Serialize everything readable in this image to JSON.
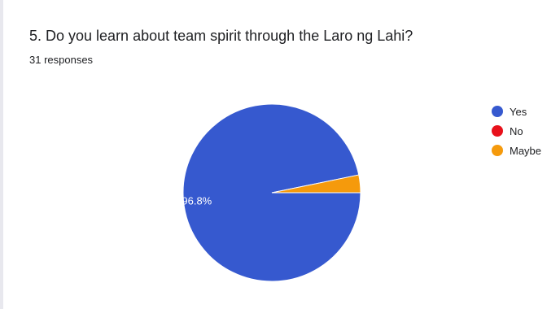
{
  "header": {
    "title": "5. Do you learn about team spirit through the Laro ng Lahi?",
    "responses": "31 responses"
  },
  "chart_data": {
    "type": "pie",
    "title": "5. Do you learn about team spirit through the Laro ng Lahi?",
    "slices": [
      {
        "label": "Yes",
        "value": 30,
        "percent_label": "96.8%",
        "color": "#3659cf"
      },
      {
        "label": "No",
        "value": 0,
        "percent_label": "",
        "color": "#e8111b"
      },
      {
        "label": "Maybe",
        "value": 1,
        "percent_label": "",
        "color": "#f59a0c"
      }
    ],
    "legend_position": "right"
  }
}
